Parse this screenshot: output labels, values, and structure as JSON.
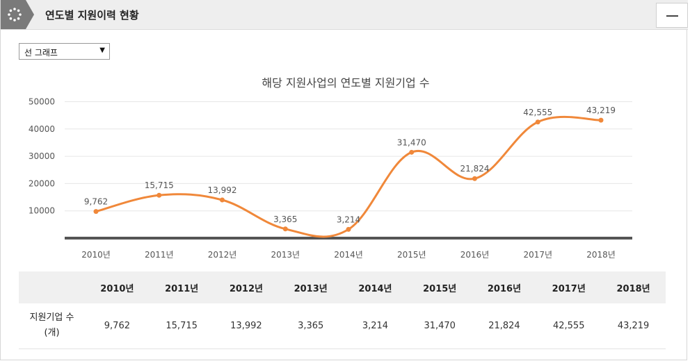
{
  "header": {
    "title": "연도별 지원이력 현황",
    "colors": {
      "badge": "#7a7a7a",
      "bar": "#eeeeee"
    }
  },
  "controls": {
    "chart_type_select": "선 그래프"
  },
  "chart_data": {
    "type": "line",
    "title": "해당 지원사업의 연도별 지원기업 수",
    "categories": [
      "2010년",
      "2011년",
      "2012년",
      "2013년",
      "2014년",
      "2015년",
      "2016년",
      "2017년",
      "2018년"
    ],
    "values": [
      9762,
      15715,
      13992,
      3365,
      3214,
      31470,
      21824,
      42555,
      43219
    ],
    "value_labels": [
      "9,762",
      "15,715",
      "13,992",
      "3,365",
      "3,214",
      "31,470",
      "21,824",
      "42,555",
      "43,219"
    ],
    "y_ticks": [
      "10000",
      "20000",
      "30000",
      "40000",
      "50000"
    ],
    "ylim": [
      0,
      50000
    ],
    "line_color": "#f0883a",
    "grid": true
  },
  "table": {
    "headers": [
      "2010년",
      "2011년",
      "2012년",
      "2013년",
      "2014년",
      "2015년",
      "2016년",
      "2017년",
      "2018년"
    ],
    "row_label_line1": "지원기업 수",
    "row_label_line2": "(개)",
    "values": [
      "9,762",
      "15,715",
      "13,992",
      "3,365",
      "3,214",
      "31,470",
      "21,824",
      "42,555",
      "43,219"
    ]
  }
}
